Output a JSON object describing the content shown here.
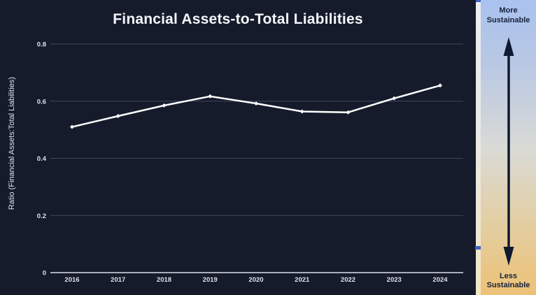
{
  "title": "Financial Assets-to-Total Liabilities",
  "chart_data": {
    "type": "line",
    "title": "Financial Assets-to-Total Liabilities",
    "x": [
      "2016",
      "2017",
      "2018",
      "2019",
      "2020",
      "2021",
      "2022",
      "2023",
      "2024"
    ],
    "series": [
      {
        "name": "Financial Assets to Total Liabilities ratio",
        "values": [
          0.51,
          0.548,
          0.585,
          0.617,
          0.592,
          0.564,
          0.561,
          0.61,
          0.655
        ]
      }
    ],
    "xlabel": "",
    "ylabel": "Ratio (Financial Assets:Total Liabilities)",
    "ylim": [
      0,
      0.8
    ],
    "yticks": [
      0,
      0.2,
      0.4,
      0.6,
      0.8
    ],
    "ytick_labels": [
      "0",
      "0.2",
      "0.4",
      "0.6",
      "0.8"
    ],
    "grid": true,
    "legend": "none",
    "line_color": "#ffffff",
    "marker": "diamond",
    "background_color": "#151b2b",
    "gridline_color": "#3f4760",
    "axis_line_color": "#a9aeba",
    "tick_label_color": "#dde0e7"
  },
  "sidebar": {
    "top_label": "More Sustainable",
    "bottom_label": "Less Sustainable",
    "arrow_icon": "double-headed-vertical-arrow",
    "gradient_top": "#a9c2ee",
    "gradient_middle": "#d9dad6",
    "gradient_bottom": "#ecc278",
    "text_color": "#17223c",
    "arrow_color": "#0f1a30"
  },
  "decorations": {
    "divider_strip_color_top": "#eceef0",
    "divider_strip_color_bottom": "#f2e5c6",
    "blue_marker_color": "#3e63c4"
  }
}
